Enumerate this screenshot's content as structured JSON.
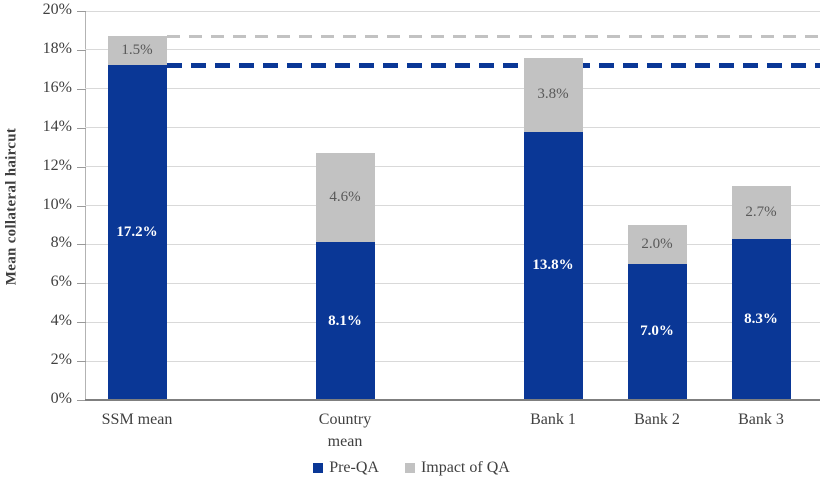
{
  "chart_data": {
    "type": "bar",
    "stacked": true,
    "title": "",
    "xlabel": "",
    "ylabel": "Mean collateral haircut",
    "ylim": [
      0,
      20
    ],
    "ytick_step": 2,
    "ytick_labels": [
      "0%",
      "2%",
      "4%",
      "6%",
      "8%",
      "10%",
      "12%",
      "14%",
      "16%",
      "18%",
      "20%"
    ],
    "grid": "horizontal",
    "legend_position": "bottom",
    "categories": [
      "SSM mean",
      "Country mean",
      "Bank 1",
      "Bank 2",
      "Bank 3"
    ],
    "category_slots": [
      0,
      2,
      4,
      5,
      6
    ],
    "total_slots": 7,
    "series": [
      {
        "name": "Pre-QA",
        "color": "#0a3796",
        "values": [
          17.2,
          8.1,
          13.8,
          7.0,
          8.3
        ],
        "data_labels": [
          "17.2%",
          "8.1%",
          "13.8%",
          "7.0%",
          "8.3%"
        ],
        "label_color": "#ffffff",
        "label_bold": true
      },
      {
        "name": "Impact of QA",
        "color": "#c2c2c2",
        "values": [
          1.5,
          4.6,
          3.8,
          2.0,
          2.7
        ],
        "data_labels": [
          "1.5%",
          "4.6%",
          "3.8%",
          "2.0%",
          "2.7%"
        ],
        "label_color": "#595959",
        "label_bold": false
      }
    ],
    "totals": [
      18.7,
      12.7,
      17.6,
      9.0,
      11.0
    ],
    "reference_lines": [
      {
        "name": "ssm-mean-post-qa-line",
        "value": 18.7,
        "color": "#c2c2c2",
        "style": "dashed",
        "thickness": 3,
        "dash": 13,
        "gap": 9
      },
      {
        "name": "ssm-mean-pre-qa-line",
        "value": 17.2,
        "color": "#0a3796",
        "style": "dashed",
        "thickness": 5,
        "dash": 15,
        "gap": 9
      }
    ],
    "legend": [
      {
        "label": "Pre-QA",
        "color": "#0a3796"
      },
      {
        "label": "Impact of QA",
        "color": "#c2c2c2"
      }
    ]
  },
  "colors": {
    "gridline": "#d9d9d9",
    "x_axis": "#7f7f7f",
    "y_axis": "#b3b3b3",
    "tick_text": "#404040"
  }
}
